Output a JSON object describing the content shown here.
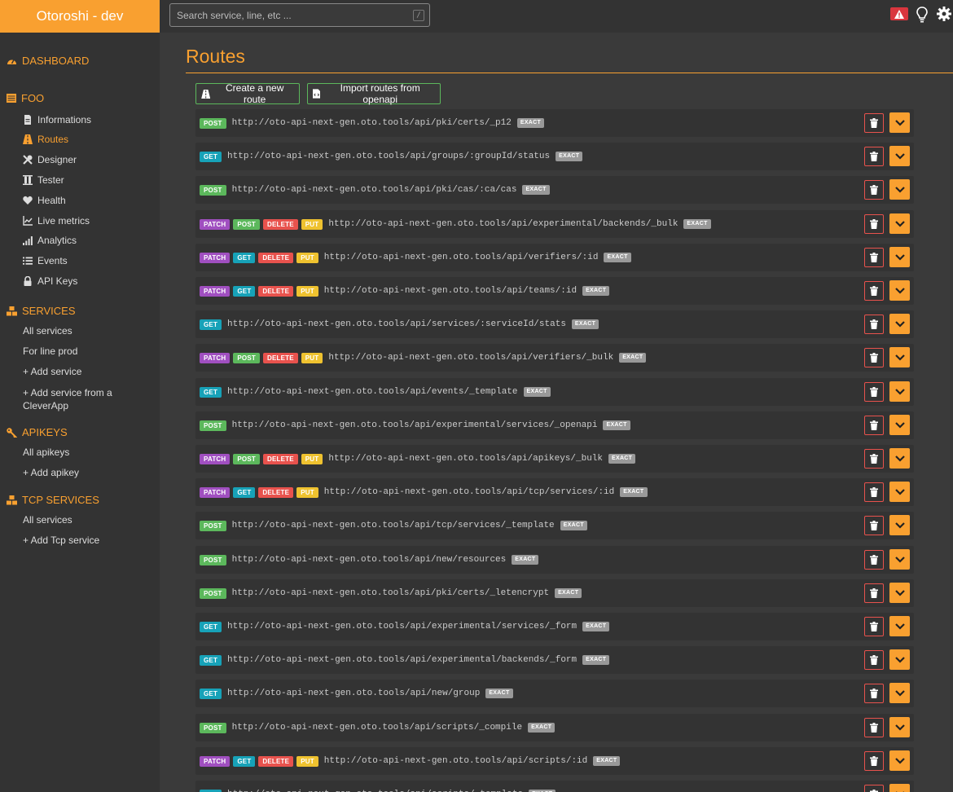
{
  "header": {
    "brand": "Otoroshi - dev",
    "search_placeholder": "Search service, line, etc ...",
    "search_shortcut": "/"
  },
  "sidebar": {
    "dashboard": "DASHBOARD",
    "group": "FOO",
    "group_items": [
      {
        "label": "Informations",
        "icon": "file-icon"
      },
      {
        "label": "Routes",
        "icon": "road-icon",
        "active": true
      },
      {
        "label": "Designer",
        "icon": "tools-icon"
      },
      {
        "label": "Tester",
        "icon": "vials-icon"
      },
      {
        "label": "Health",
        "icon": "heart-icon"
      },
      {
        "label": "Live metrics",
        "icon": "line-chart-icon"
      },
      {
        "label": "Analytics",
        "icon": "signal-icon"
      },
      {
        "label": "Events",
        "icon": "list-icon"
      },
      {
        "label": "API Keys",
        "icon": "lock-icon"
      }
    ],
    "services": "SERVICES",
    "services_items": [
      "All services",
      "For line prod",
      "+ Add service",
      "+ Add service from a CleverApp"
    ],
    "apikeys": "APIKEYS",
    "apikeys_items": [
      "All apikeys",
      "+ Add apikey"
    ],
    "tcp": "TCP SERVICES",
    "tcp_items": [
      "All services",
      "+ Add Tcp service"
    ]
  },
  "main": {
    "title": "Routes",
    "create_label": "Create a new route",
    "import_label": "Import routes from openapi"
  },
  "routes": [
    {
      "methods": [
        "POST"
      ],
      "url": "http://oto-api-next-gen.oto.tools/api/pki/certs/_p12",
      "match": "EXACT"
    },
    {
      "methods": [
        "GET"
      ],
      "url": "http://oto-api-next-gen.oto.tools/api/groups/:groupId/status",
      "match": "EXACT"
    },
    {
      "methods": [
        "POST"
      ],
      "url": "http://oto-api-next-gen.oto.tools/api/pki/cas/:ca/cas",
      "match": "EXACT"
    },
    {
      "methods": [
        "PATCH",
        "POST",
        "DELETE",
        "PUT"
      ],
      "url": "http://oto-api-next-gen.oto.tools/api/experimental/backends/_bulk",
      "match": "EXACT"
    },
    {
      "methods": [
        "PATCH",
        "GET",
        "DELETE",
        "PUT"
      ],
      "url": "http://oto-api-next-gen.oto.tools/api/verifiers/:id",
      "match": "EXACT"
    },
    {
      "methods": [
        "PATCH",
        "GET",
        "DELETE",
        "PUT"
      ],
      "url": "http://oto-api-next-gen.oto.tools/api/teams/:id",
      "match": "EXACT"
    },
    {
      "methods": [
        "GET"
      ],
      "url": "http://oto-api-next-gen.oto.tools/api/services/:serviceId/stats",
      "match": "EXACT"
    },
    {
      "methods": [
        "PATCH",
        "POST",
        "DELETE",
        "PUT"
      ],
      "url": "http://oto-api-next-gen.oto.tools/api/verifiers/_bulk",
      "match": "EXACT"
    },
    {
      "methods": [
        "GET"
      ],
      "url": "http://oto-api-next-gen.oto.tools/api/events/_template",
      "match": "EXACT"
    },
    {
      "methods": [
        "POST"
      ],
      "url": "http://oto-api-next-gen.oto.tools/api/experimental/services/_openapi",
      "match": "EXACT"
    },
    {
      "methods": [
        "PATCH",
        "POST",
        "DELETE",
        "PUT"
      ],
      "url": "http://oto-api-next-gen.oto.tools/api/apikeys/_bulk",
      "match": "EXACT"
    },
    {
      "methods": [
        "PATCH",
        "GET",
        "DELETE",
        "PUT"
      ],
      "url": "http://oto-api-next-gen.oto.tools/api/tcp/services/:id",
      "match": "EXACT"
    },
    {
      "methods": [
        "POST"
      ],
      "url": "http://oto-api-next-gen.oto.tools/api/tcp/services/_template",
      "match": "EXACT"
    },
    {
      "methods": [
        "POST"
      ],
      "url": "http://oto-api-next-gen.oto.tools/api/new/resources",
      "match": "EXACT"
    },
    {
      "methods": [
        "POST"
      ],
      "url": "http://oto-api-next-gen.oto.tools/api/pki/certs/_letencrypt",
      "match": "EXACT"
    },
    {
      "methods": [
        "GET"
      ],
      "url": "http://oto-api-next-gen.oto.tools/api/experimental/services/_form",
      "match": "EXACT"
    },
    {
      "methods": [
        "GET"
      ],
      "url": "http://oto-api-next-gen.oto.tools/api/experimental/backends/_form",
      "match": "EXACT"
    },
    {
      "methods": [
        "GET"
      ],
      "url": "http://oto-api-next-gen.oto.tools/api/new/group",
      "match": "EXACT"
    },
    {
      "methods": [
        "POST"
      ],
      "url": "http://oto-api-next-gen.oto.tools/api/scripts/_compile",
      "match": "EXACT"
    },
    {
      "methods": [
        "PATCH",
        "GET",
        "DELETE",
        "PUT"
      ],
      "url": "http://oto-api-next-gen.oto.tools/api/scripts/:id",
      "match": "EXACT"
    },
    {
      "methods": [
        "GET"
      ],
      "url": "http://oto-api-next-gen.oto.tools/api/scripts/_template",
      "match": "EXACT"
    }
  ],
  "colors": {
    "accent": "#f9a030",
    "post": "#5cb85c",
    "get": "#17a2b8",
    "patch": "#a04fc0",
    "delete": "#e8524d",
    "put": "#efc22f"
  }
}
